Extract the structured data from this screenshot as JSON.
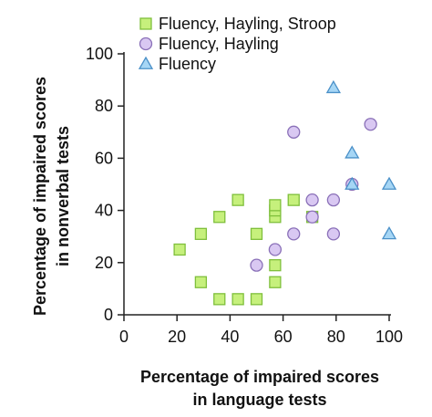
{
  "chart_data": {
    "type": "scatter",
    "title": "",
    "xlabel_lines": [
      "Percentage of impaired scores",
      "in  language tests"
    ],
    "ylabel_lines": [
      "Percentage of impaired scores",
      "in nonverbal tests"
    ],
    "xlim": [
      0,
      100
    ],
    "ylim": [
      0,
      100
    ],
    "xticks": [
      0,
      20,
      40,
      60,
      80,
      100
    ],
    "yticks": [
      0,
      20,
      40,
      60,
      80,
      100
    ],
    "grid": false,
    "legend_position": "top",
    "series": [
      {
        "name": "Fluency, Hayling, Stroop",
        "marker": "square",
        "color": "#c6f07c",
        "stroke": "#7fbf3c",
        "points": [
          [
            21,
            25
          ],
          [
            29,
            31
          ],
          [
            29,
            12.5
          ],
          [
            36,
            6
          ],
          [
            36,
            37.5
          ],
          [
            43,
            6
          ],
          [
            43,
            44
          ],
          [
            50,
            31
          ],
          [
            50,
            6
          ],
          [
            57,
            19
          ],
          [
            57,
            12.5
          ],
          [
            57,
            37.5
          ],
          [
            57,
            40
          ],
          [
            57,
            42
          ],
          [
            64,
            44
          ],
          [
            71,
            37.5
          ]
        ]
      },
      {
        "name": "Fluency, Hayling",
        "marker": "circle",
        "color": "#d9c8f2",
        "stroke": "#8a70b8",
        "points": [
          [
            50,
            19
          ],
          [
            57,
            25
          ],
          [
            64,
            31
          ],
          [
            64,
            70
          ],
          [
            71,
            37.5
          ],
          [
            71,
            44
          ],
          [
            79,
            31
          ],
          [
            79,
            44
          ],
          [
            86,
            50
          ],
          [
            93,
            73
          ]
        ]
      },
      {
        "name": "Fluency",
        "marker": "triangle",
        "color": "#a6d6f5",
        "stroke": "#4a90c8",
        "points": [
          [
            79,
            87
          ],
          [
            86,
            50
          ],
          [
            86,
            62
          ],
          [
            100,
            50
          ],
          [
            100,
            31
          ]
        ]
      }
    ]
  }
}
